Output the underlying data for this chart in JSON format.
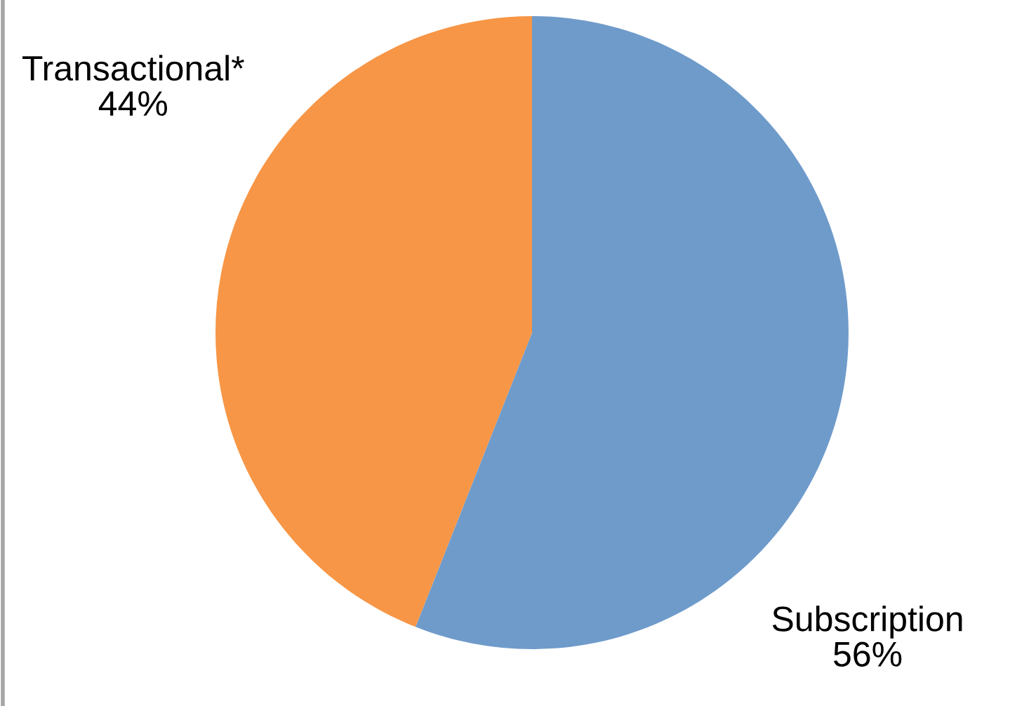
{
  "chart_data": {
    "type": "pie",
    "categories": [
      "Subscription",
      "Transactional*"
    ],
    "values": [
      56,
      44
    ],
    "colors": [
      "#6f9bcb",
      "#f79646"
    ],
    "value_labels": [
      "56%",
      "44%"
    ],
    "legend": false
  }
}
